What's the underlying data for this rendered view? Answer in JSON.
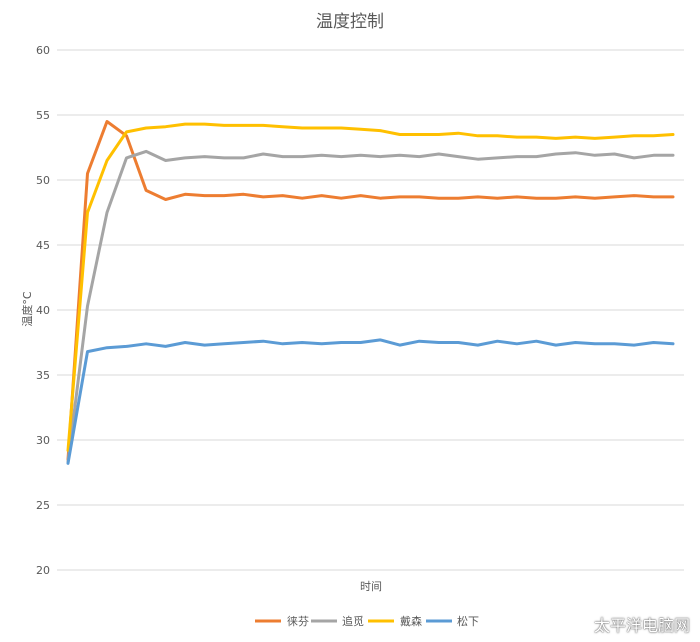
{
  "chart_data": {
    "type": "line",
    "title": "温度控制",
    "xlabel": "时间",
    "ylabel": "温度°C",
    "ylim": [
      20,
      60
    ],
    "yticks": [
      20,
      25,
      30,
      35,
      40,
      45,
      50,
      55,
      60
    ],
    "grid": true,
    "legend_position": "bottom",
    "x": [
      1,
      2,
      3,
      4,
      5,
      6,
      7,
      8,
      9,
      10,
      11,
      12,
      13,
      14,
      15,
      16,
      17,
      18,
      19,
      20,
      21,
      22,
      23,
      24,
      25,
      26,
      27,
      28,
      29,
      30,
      31,
      32
    ],
    "series": [
      {
        "name": "徕芬",
        "color": "#ed7d31",
        "values": [
          28.5,
          50.5,
          54.5,
          53.4,
          49.2,
          48.5,
          48.9,
          48.8,
          48.8,
          48.9,
          48.7,
          48.8,
          48.6,
          48.8,
          48.6,
          48.8,
          48.6,
          48.7,
          48.7,
          48.6,
          48.6,
          48.7,
          48.6,
          48.7,
          48.6,
          48.6,
          48.7,
          48.6,
          48.7,
          48.8,
          48.7,
          48.7
        ]
      },
      {
        "name": "追觅",
        "color": "#a5a5a5",
        "values": [
          28.3,
          40.3,
          47.5,
          51.7,
          52.2,
          51.5,
          51.7,
          51.8,
          51.7,
          51.7,
          52.0,
          51.8,
          51.8,
          51.9,
          51.8,
          51.9,
          51.8,
          51.9,
          51.8,
          52.0,
          51.8,
          51.6,
          51.7,
          51.8,
          51.8,
          52.0,
          52.1,
          51.9,
          52.0,
          51.7,
          51.9,
          51.9
        ]
      },
      {
        "name": "戴森",
        "color": "#ffc000",
        "values": [
          29.2,
          47.5,
          51.5,
          53.7,
          54.0,
          54.1,
          54.3,
          54.3,
          54.2,
          54.2,
          54.2,
          54.1,
          54.0,
          54.0,
          54.0,
          53.9,
          53.8,
          53.5,
          53.5,
          53.5,
          53.6,
          53.4,
          53.4,
          53.3,
          53.3,
          53.2,
          53.3,
          53.2,
          53.3,
          53.4,
          53.4,
          53.5
        ]
      },
      {
        "name": "松下",
        "color": "#5b9bd5",
        "values": [
          28.2,
          36.8,
          37.1,
          37.2,
          37.4,
          37.2,
          37.5,
          37.3,
          37.4,
          37.5,
          37.6,
          37.4,
          37.5,
          37.4,
          37.5,
          37.5,
          37.7,
          37.3,
          37.6,
          37.5,
          37.5,
          37.3,
          37.6,
          37.4,
          37.6,
          37.3,
          37.5,
          37.4,
          37.4,
          37.3,
          37.5,
          37.4
        ]
      }
    ]
  },
  "watermark": "太平洋电脑网"
}
